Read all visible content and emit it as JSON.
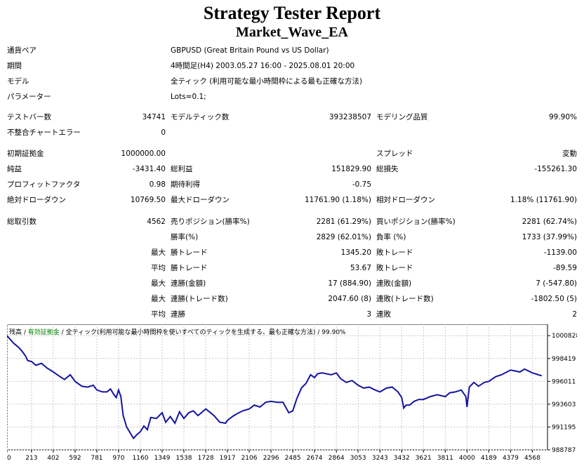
{
  "report": {
    "title": "Strategy Tester Report",
    "ea_name": "Market_Wave_EA"
  },
  "settings": [
    {
      "label": "通貨ペア",
      "value": "GBPUSD (Great Britain Pound vs US Dollar)"
    },
    {
      "label": "期間",
      "value": "4時間足(H4) 2003.05.27 16:00 - 2025.08.01 20:00"
    },
    {
      "label": "モデル",
      "value": "全ティック (利用可能な最小時間枠による最も正確な方法)"
    },
    {
      "label": "パラメーター",
      "value": "Lots=0.1;"
    }
  ],
  "stats": {
    "bars_label": "テストバー数",
    "bars": "34741",
    "ticks_label": "モデルティック数",
    "ticks": "393238507",
    "quality_label": "モデリング品質",
    "quality": "99.90%",
    "mismatch_label": "不整合チャートエラー",
    "mismatch": "0",
    "deposit_label": "初期証拠金",
    "deposit": "1000000.00",
    "spread_label": "スプレッド",
    "spread": "変動",
    "net_label": "純益",
    "net": "-3431.40",
    "gross_profit_label": "総利益",
    "gross_profit": "151829.90",
    "gross_loss_label": "総損失",
    "gross_loss": "-155261.30",
    "pf_label": "プロフィットファクタ",
    "pf": "0.98",
    "expected_label": "期待利得",
    "expected": "-0.75",
    "abs_dd_label": "絶対ドローダウン",
    "abs_dd": "10769.50",
    "max_dd_label": "最大ドローダウン",
    "max_dd": "11761.90 (1.18%)",
    "rel_dd_label": "相対ドローダウン",
    "rel_dd": "1.18% (11761.90)",
    "trades_label": "総取引数",
    "trades": "4562",
    "short_label": "売りポジション(勝率%)",
    "short": "2281 (61.29%)",
    "long_label": "買いポジション(勝率%)",
    "long": "2281 (62.74%)",
    "win_label": "勝率(%)",
    "win": "2829 (62.01%)",
    "loss_label": "負率 (%)",
    "loss": "1733 (37.99%)"
  },
  "detail_rows": [
    {
      "prefix": "最大",
      "l1": "勝トレード",
      "v1": "1345.20",
      "l2": "敗トレード",
      "v2": "-1139.00"
    },
    {
      "prefix": "平均",
      "l1": "勝トレード",
      "v1": "53.67",
      "l2": "敗トレード",
      "v2": "-89.59"
    },
    {
      "prefix": "最大",
      "l1": "連勝(金額)",
      "v1": "17 (884.90)",
      "l2": "連敗(金額)",
      "v2": "7 (-547.80)"
    },
    {
      "prefix": "最大",
      "l1": "連勝(トレード数)",
      "v1": "2047.60 (8)",
      "l2": "連敗(トレード数)",
      "v2": "-1802.50 (5)"
    },
    {
      "prefix": "平均",
      "l1": "連勝",
      "v1": "3",
      "l2": "連敗",
      "v2": "2"
    }
  ],
  "chart_data": {
    "type": "line",
    "legend": {
      "balance": "残高",
      "equity": "有効証拠金",
      "model": "全ティック(利用可能な最小時間枠を使いすべてのティックを生成する、最も正確な方法)",
      "quality": "99.90%"
    },
    "x_ticks": [
      "0",
      "213",
      "402",
      "592",
      "781",
      "970",
      "1160",
      "1349",
      "1538",
      "1728",
      "1917",
      "2106",
      "2296",
      "2485",
      "2674",
      "2864",
      "3053",
      "3243",
      "3432",
      "3621",
      "3811",
      "4000",
      "4189",
      "4379",
      "4568"
    ],
    "y_ticks": [
      "1000828",
      "998419",
      "996011",
      "993603",
      "991195",
      "988787"
    ],
    "ylim": [
      988787,
      1002030
    ],
    "xlim": [
      0,
      4700
    ],
    "colors": {
      "line": "#1414a0",
      "grid": "#c8c8c8",
      "legend_green": "#008000"
    },
    "series": [
      {
        "x": [
          0,
          30,
          60,
          100,
          130,
          160,
          180,
          213,
          250,
          300,
          350,
          402,
          450,
          500,
          550,
          592,
          650,
          700,
          750,
          781,
          830,
          870,
          900,
          930,
          950,
          970,
          990,
          1010,
          1040,
          1070,
          1100,
          1130,
          1160,
          1190,
          1220,
          1250,
          1300,
          1349,
          1380,
          1420,
          1460,
          1500,
          1538,
          1580,
          1620,
          1660,
          1700,
          1728,
          1760,
          1800,
          1850,
          1900,
          1917,
          1960,
          2000,
          2050,
          2106,
          2150,
          2200,
          2250,
          2296,
          2350,
          2400,
          2450,
          2485,
          2520,
          2560,
          2600,
          2640,
          2674,
          2700,
          2740,
          2780,
          2820,
          2864,
          2900,
          2950,
          3000,
          3053,
          3100,
          3150,
          3200,
          3243,
          3300,
          3350,
          3400,
          3432,
          3450,
          3470,
          3500,
          3540,
          3580,
          3621,
          3680,
          3740,
          3811,
          3850,
          3900,
          3950,
          3990,
          4000,
          4020,
          4060,
          4100,
          4150,
          4189,
          4250,
          4300,
          4379,
          4420,
          4460,
          4500,
          4568,
          4620,
          4650
        ],
        "y": [
          1000820,
          1000400,
          1000000,
          999600,
          999200,
          998700,
          998200,
          998100,
          997700,
          997900,
          997400,
          997000,
          996600,
          996200,
          996700,
          996000,
          995500,
          995400,
          995600,
          995100,
          994900,
          994900,
          995200,
          994600,
          994300,
          995100,
          994400,
          992400,
          991200,
          990600,
          990000,
          990400,
          990700,
          991300,
          990900,
          992200,
          992100,
          992700,
          991700,
          992300,
          991600,
          992800,
          992100,
          992700,
          992900,
          992400,
          992800,
          993100,
          992800,
          992400,
          991700,
          991600,
          991900,
          992300,
          992600,
          992900,
          993100,
          993500,
          993300,
          993800,
          993900,
          993800,
          993800,
          992700,
          992900,
          994200,
          995300,
          995800,
          996700,
          996400,
          996800,
          996900,
          996800,
          996700,
          996900,
          996300,
          995900,
          996100,
          995600,
          995300,
          995400,
          995100,
          994900,
          995300,
          995400,
          994900,
          994300,
          993200,
          993500,
          993500,
          993900,
          994100,
          994100,
          994400,
          994600,
          994400,
          994800,
          994900,
          995100,
          994400,
          993300,
          995400,
          995900,
          995500,
          995900,
          996000,
          996500,
          996700,
          997200,
          997100,
          997000,
          997300,
          996900,
          996700,
          996600
        ]
      }
    ]
  }
}
